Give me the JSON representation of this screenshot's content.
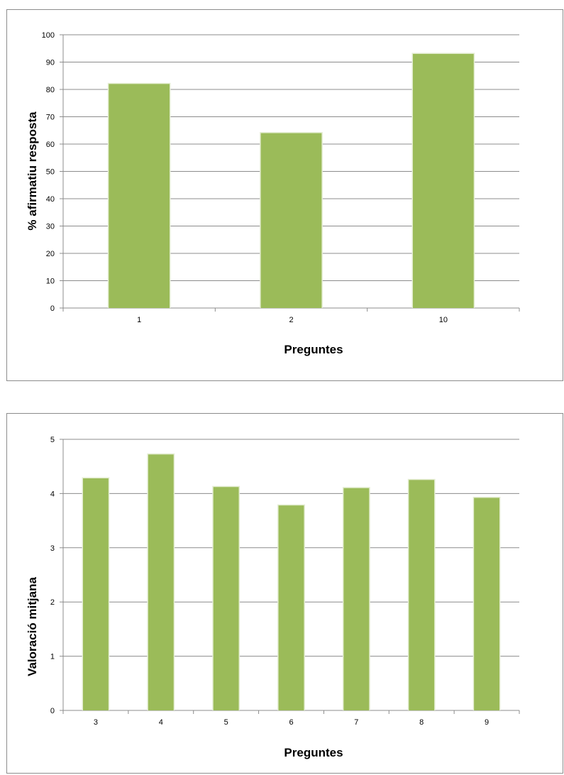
{
  "chart_data": [
    {
      "type": "bar",
      "categories": [
        "1",
        "2",
        "10"
      ],
      "values": [
        82,
        64,
        93
      ],
      "title": "",
      "xlabel": "Preguntes",
      "ylabel": "% afirmatiu resposta",
      "ylim": [
        0,
        100
      ],
      "yticks": [
        "0",
        "10",
        "20",
        "30",
        "40",
        "50",
        "60",
        "70",
        "80",
        "90",
        "100"
      ],
      "grid": true,
      "legend": "none",
      "bar_color": "#9bbb59"
    },
    {
      "type": "bar",
      "categories": [
        "3",
        "4",
        "5",
        "6",
        "7",
        "8",
        "9"
      ],
      "values": [
        4.28,
        4.72,
        4.12,
        3.78,
        4.1,
        4.25,
        3.92
      ],
      "title": "",
      "xlabel": "Preguntes",
      "ylabel": "Valoració mitjana",
      "ylim": [
        0,
        5
      ],
      "yticks": [
        "0",
        "1",
        "2",
        "3",
        "4",
        "5"
      ],
      "grid": true,
      "legend": "none",
      "bar_color": "#9bbb59"
    }
  ]
}
